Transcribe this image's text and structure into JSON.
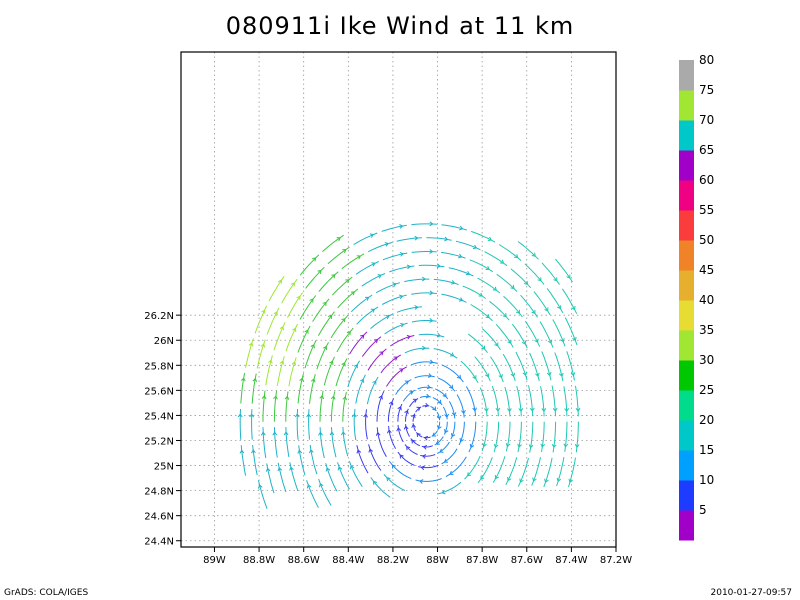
{
  "chart_data": {
    "type": "streamline",
    "title": "080911i Ike Wind at 11 km",
    "xlabel": "",
    "ylabel": "",
    "xlim": [
      -89.15,
      -87.2
    ],
    "ylim": [
      24.35,
      28.3
    ],
    "grid": true,
    "x_ticks": [
      {
        "value": -89.0,
        "label": "89W"
      },
      {
        "value": -88.8,
        "label": "88.8W"
      },
      {
        "value": -88.6,
        "label": "88.6W"
      },
      {
        "value": -88.4,
        "label": "88.4W"
      },
      {
        "value": -88.2,
        "label": "88.2W"
      },
      {
        "value": -88.0,
        "label": "88W"
      },
      {
        "value": -87.8,
        "label": "87.8W"
      },
      {
        "value": -87.6,
        "label": "87.6W"
      },
      {
        "value": -87.4,
        "label": "87.4W"
      },
      {
        "value": -87.2,
        "label": "87.2W"
      }
    ],
    "y_ticks": [
      {
        "value": 24.4,
        "label": "24.4N"
      },
      {
        "value": 24.6,
        "label": "24.6N"
      },
      {
        "value": 24.8,
        "label": "24.8N"
      },
      {
        "value": 25.0,
        "label": "25N"
      },
      {
        "value": 25.2,
        "label": "25.2N"
      },
      {
        "value": 25.4,
        "label": "25.4N"
      },
      {
        "value": 25.6,
        "label": "25.6N"
      },
      {
        "value": 25.8,
        "label": "25.8N"
      },
      {
        "value": 26.0,
        "label": "26N"
      },
      {
        "value": 26.2,
        "label": "26.2N"
      }
    ],
    "center": {
      "lon": -88.05,
      "lat": 25.35
    },
    "colorbar": {
      "labels": [
        "5",
        "10",
        "15",
        "20",
        "25",
        "30",
        "35",
        "40",
        "45",
        "50",
        "55",
        "60",
        "65",
        "70",
        "75",
        "80"
      ],
      "colors": [
        "#a000c8",
        "#1e3cff",
        "#00a0ff",
        "#00c8c8",
        "#00dc8c",
        "#00c800",
        "#a0e632",
        "#e6dc32",
        "#e6af2d",
        "#f08228",
        "#fa3c3c",
        "#f00082",
        "#a000c8",
        "#00c8c8",
        "#a0e632",
        "#aaaaaa"
      ]
    }
  },
  "footer": {
    "left": "GrADS: COLA/IGES",
    "right": "2010-01-27-09:57"
  }
}
